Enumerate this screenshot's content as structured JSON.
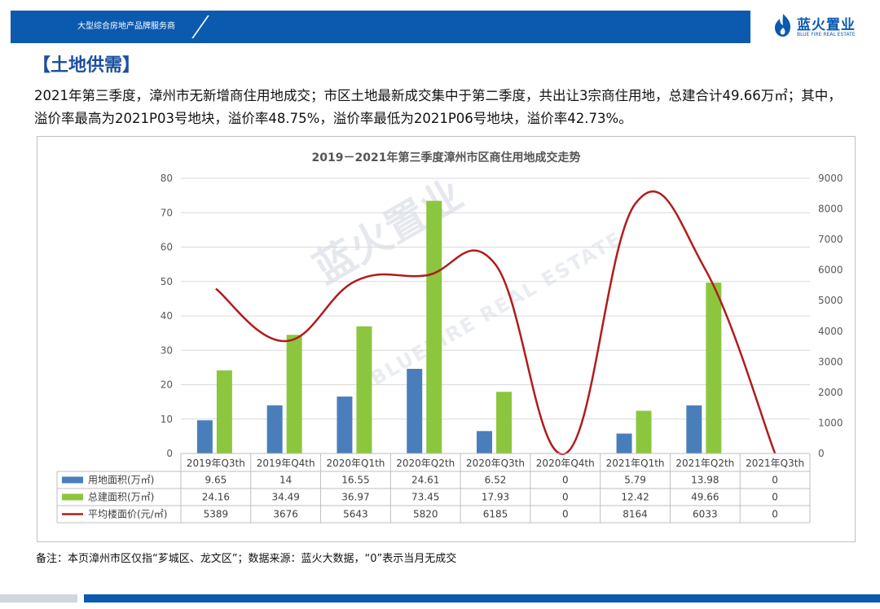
{
  "header": {
    "tagline": "大型综合房地产品牌服务商"
  },
  "logo": {
    "name_cn": "蓝火置业",
    "name_en": "BLUE FIRE REAL ESTATE"
  },
  "section_title": "【土地供需】",
  "intro_text": "2021年第三季度，漳州市无新增商住用地成交；市区土地最新成交集中于第二季度，共出让3宗商住用地，总建合计49.66万㎡；其中，溢价率最高为2021P03号地块，溢价率48.75%，溢价率最低为2021P06号地块，溢价率42.73%。",
  "chart_data": {
    "type": "bar+line",
    "title": "2019－2021年第三季度漳州市区商住用地成交走势",
    "categories": [
      "2019年Q3th",
      "2019年Q4th",
      "2020年Q1th",
      "2020年Q2th",
      "2020年Q3th",
      "2020年Q4th",
      "2021年Q1th",
      "2021年Q2th",
      "2021年Q3th"
    ],
    "series": [
      {
        "name": "用地面积(万㎡)",
        "type": "bar",
        "axis": "left",
        "color": "#4a7ebb",
        "values": [
          9.65,
          14,
          16.55,
          24.61,
          6.52,
          0,
          5.79,
          13.98,
          0
        ],
        "labels": [
          "9.65",
          "14",
          "16.55",
          "24.61",
          "6.52",
          "0",
          "5.79",
          "13.98",
          "0"
        ]
      },
      {
        "name": "总建面积(万㎡)",
        "type": "bar",
        "axis": "left",
        "color": "#8cc63f",
        "values": [
          24.16,
          34.49,
          36.97,
          73.45,
          17.93,
          0,
          12.42,
          49.66,
          0
        ],
        "labels": [
          "24.16",
          "34.49",
          "36.97",
          "73.45",
          "17.93",
          "0",
          "12.42",
          "49.66",
          "0"
        ]
      },
      {
        "name": "平均楼面价(元/㎡)",
        "type": "line",
        "axis": "right",
        "color": "#b01c1c",
        "values": [
          5389,
          3676,
          5643,
          5820,
          6185,
          0,
          8164,
          6033,
          0
        ],
        "labels": [
          "5389",
          "3676",
          "5643",
          "5820",
          "6185",
          "0",
          "8164",
          "6033",
          "0"
        ]
      }
    ],
    "y_left": {
      "min": 0,
      "max": 80,
      "step": 10,
      "ticks": [
        "0",
        "10",
        "20",
        "30",
        "40",
        "50",
        "60",
        "70",
        "80"
      ]
    },
    "y_right": {
      "min": 0,
      "max": 9000,
      "step": 1000,
      "ticks": [
        "0",
        "1000",
        "2000",
        "3000",
        "4000",
        "5000",
        "6000",
        "7000",
        "8000",
        "9000"
      ]
    },
    "grid": true,
    "legend": "data-table-below"
  },
  "watermark": {
    "cn": "蓝火置业",
    "en": "BLUE FIRE REAL ESTATE"
  },
  "note": "备注：本页漳州市区仅指“芗城区、龙文区”；数据来源：蓝火大数据，“0”表示当月无成交"
}
